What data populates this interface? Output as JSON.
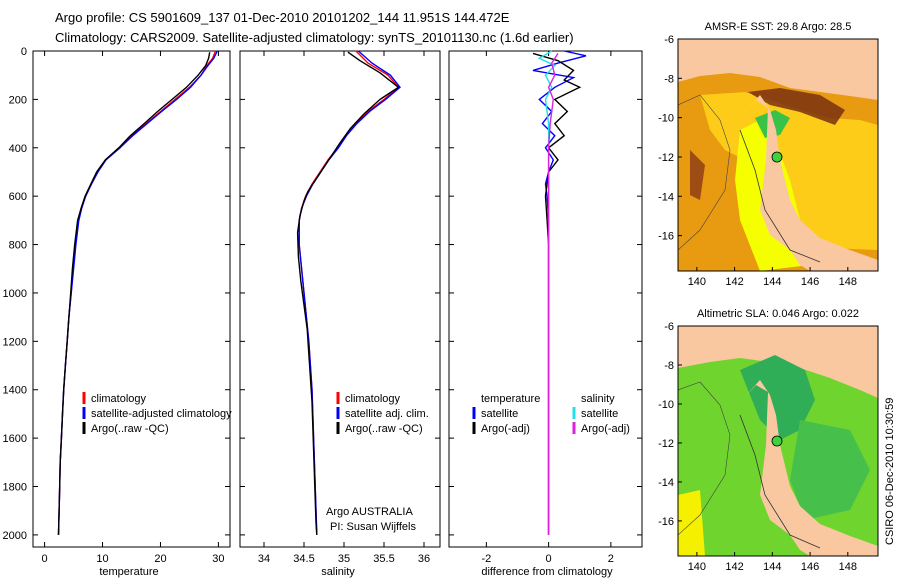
{
  "title": {
    "line1": "Argo profile: CS 5901609_137 01-Dec-2010 20101202_144 11.951S 144.472E",
    "line2": "Climatology: CARS2009. Satellite-adjusted climatology: synTS_20101130.nc (1.6d earlier)"
  },
  "colors": {
    "climatology": "#ff0000",
    "satellite": "#0000ff",
    "argo": "#000000",
    "satellite_diff": "#22e0e8",
    "argo_adj_diff": "#dd22dd",
    "land": "#f9c8a0"
  },
  "chart_data": [
    {
      "type": "line",
      "id": "temperature",
      "xlabel": "temperature",
      "xlim": [
        -2,
        32
      ],
      "ylim": [
        2050,
        0
      ],
      "xticks": [
        0,
        10,
        20,
        30
      ],
      "yticks": [
        0,
        200,
        400,
        600,
        800,
        1000,
        1200,
        1400,
        1600,
        1800,
        2000
      ],
      "legend": [
        "climatology",
        "satellite-adjusted climatology",
        "Argo(..raw -QC)"
      ],
      "series": [
        {
          "name": "climatology",
          "color": "#ff0000",
          "points": [
            [
              29.5,
              0
            ],
            [
              29,
              30
            ],
            [
              28,
              60
            ],
            [
              27,
              100
            ],
            [
              25,
              150
            ],
            [
              22.5,
              200
            ],
            [
              20,
              250
            ],
            [
              17.5,
              300
            ],
            [
              15,
              350
            ],
            [
              13,
              400
            ],
            [
              10.5,
              450
            ],
            [
              9,
              500
            ],
            [
              8,
              550
            ],
            [
              7,
              600
            ],
            [
              6.3,
              650
            ],
            [
              5.8,
              700
            ],
            [
              5.3,
              800
            ],
            [
              4.9,
              900
            ],
            [
              4.6,
              1000
            ],
            [
              4.2,
              1100
            ],
            [
              3.9,
              1200
            ],
            [
              3.6,
              1300
            ],
            [
              3.3,
              1400
            ],
            [
              3.1,
              1500
            ],
            [
              2.9,
              1600
            ],
            [
              2.7,
              1700
            ],
            [
              2.6,
              1800
            ],
            [
              2.5,
              1900
            ],
            [
              2.4,
              2000
            ]
          ]
        },
        {
          "name": "satellite-adjusted climatology",
          "color": "#0000ff",
          "points": [
            [
              29.8,
              0
            ],
            [
              29.2,
              30
            ],
            [
              28.2,
              60
            ],
            [
              27,
              100
            ],
            [
              25.2,
              150
            ],
            [
              22.8,
              200
            ],
            [
              20.2,
              250
            ],
            [
              17.7,
              300
            ],
            [
              15.2,
              350
            ],
            [
              13,
              400
            ],
            [
              10.6,
              450
            ],
            [
              9.2,
              500
            ],
            [
              8.1,
              550
            ],
            [
              7.1,
              600
            ],
            [
              6.4,
              650
            ],
            [
              5.9,
              700
            ],
            [
              5.4,
              800
            ],
            [
              5,
              900
            ],
            [
              4.6,
              1000
            ],
            [
              4.2,
              1100
            ],
            [
              3.9,
              1200
            ],
            [
              3.6,
              1300
            ],
            [
              3.3,
              1400
            ],
            [
              3.1,
              1500
            ],
            [
              2.9,
              1600
            ],
            [
              2.7,
              1700
            ],
            [
              2.6,
              1800
            ],
            [
              2.5,
              1900
            ],
            [
              2.4,
              2000
            ]
          ]
        },
        {
          "name": "Argo(..raw -QC)",
          "color": "#000000",
          "points": [
            [
              28.5,
              5
            ],
            [
              28.3,
              30
            ],
            [
              27.8,
              60
            ],
            [
              26.5,
              100
            ],
            [
              24.5,
              150
            ],
            [
              22,
              200
            ],
            [
              19.5,
              250
            ],
            [
              17.2,
              300
            ],
            [
              14.8,
              350
            ],
            [
              12.8,
              400
            ],
            [
              10.5,
              450
            ],
            [
              9,
              500
            ],
            [
              8,
              550
            ],
            [
              7,
              600
            ],
            [
              6.3,
              650
            ],
            [
              5.7,
              700
            ],
            [
              5.2,
              800
            ],
            [
              4.8,
              900
            ],
            [
              4.5,
              1000
            ],
            [
              4.2,
              1100
            ],
            [
              3.9,
              1200
            ],
            [
              3.6,
              1300
            ],
            [
              3.3,
              1400
            ],
            [
              3.1,
              1500
            ],
            [
              2.9,
              1600
            ],
            [
              2.7,
              1700
            ],
            [
              2.6,
              1800
            ],
            [
              2.5,
              1900
            ],
            [
              2.4,
              2000
            ]
          ]
        }
      ]
    },
    {
      "type": "line",
      "id": "salinity",
      "xlabel": "salinity",
      "xlim": [
        33.7,
        36.2
      ],
      "ylim": [
        2050,
        0
      ],
      "xticks": [
        34,
        34.5,
        35,
        35.5,
        36
      ],
      "legend": [
        "climatology",
        "satellite adj. clim.",
        "Argo(..raw -QC)"
      ],
      "annotation": [
        "Argo AUSTRALIA",
        "PI: Susan Wijffels"
      ],
      "series": [
        {
          "name": "climatology",
          "color": "#ff0000",
          "points": [
            [
              35.15,
              0
            ],
            [
              35.3,
              50
            ],
            [
              35.55,
              100
            ],
            [
              35.68,
              150
            ],
            [
              35.5,
              200
            ],
            [
              35.3,
              250
            ],
            [
              35.15,
              300
            ],
            [
              35.02,
              350
            ],
            [
              34.92,
              400
            ],
            [
              34.8,
              450
            ],
            [
              34.7,
              500
            ],
            [
              34.6,
              550
            ],
            [
              34.52,
              600
            ],
            [
              34.47,
              650
            ],
            [
              34.44,
              700
            ],
            [
              34.44,
              800
            ],
            [
              34.47,
              900
            ],
            [
              34.5,
              1000
            ],
            [
              34.53,
              1100
            ],
            [
              34.56,
              1200
            ],
            [
              34.58,
              1300
            ],
            [
              34.6,
              1400
            ],
            [
              34.61,
              1500
            ],
            [
              34.62,
              1600
            ],
            [
              34.63,
              1700
            ],
            [
              34.64,
              1800
            ],
            [
              34.65,
              1900
            ],
            [
              34.66,
              2000
            ]
          ]
        },
        {
          "name": "satellite adj. clim.",
          "color": "#0000ff",
          "points": [
            [
              35.18,
              0
            ],
            [
              35.35,
              50
            ],
            [
              35.58,
              100
            ],
            [
              35.7,
              150
            ],
            [
              35.52,
              200
            ],
            [
              35.32,
              250
            ],
            [
              35.16,
              300
            ],
            [
              35.03,
              350
            ],
            [
              34.93,
              400
            ],
            [
              34.81,
              450
            ],
            [
              34.71,
              500
            ],
            [
              34.61,
              550
            ],
            [
              34.53,
              600
            ],
            [
              34.47,
              650
            ],
            [
              34.44,
              700
            ],
            [
              34.44,
              800
            ],
            [
              34.47,
              900
            ],
            [
              34.5,
              1000
            ],
            [
              34.53,
              1100
            ],
            [
              34.56,
              1200
            ],
            [
              34.58,
              1300
            ],
            [
              34.6,
              1400
            ],
            [
              34.61,
              1500
            ],
            [
              34.62,
              1600
            ],
            [
              34.63,
              1700
            ],
            [
              34.64,
              1800
            ],
            [
              34.65,
              1900
            ],
            [
              34.66,
              2000
            ]
          ]
        },
        {
          "name": "Argo(..raw -QC)",
          "color": "#000000",
          "points": [
            [
              35.05,
              5
            ],
            [
              35.2,
              40
            ],
            [
              35.45,
              90
            ],
            [
              35.68,
              150
            ],
            [
              35.45,
              200
            ],
            [
              35.25,
              260
            ],
            [
              35.08,
              320
            ],
            [
              34.95,
              380
            ],
            [
              34.85,
              430
            ],
            [
              34.75,
              480
            ],
            [
              34.65,
              530
            ],
            [
              34.55,
              580
            ],
            [
              34.5,
              620
            ],
            [
              34.45,
              680
            ],
            [
              34.42,
              750
            ],
            [
              34.43,
              850
            ],
            [
              34.46,
              950
            ],
            [
              34.5,
              1050
            ],
            [
              34.54,
              1150
            ],
            [
              34.56,
              1250
            ],
            [
              34.58,
              1350
            ],
            [
              34.6,
              1450
            ],
            [
              34.61,
              1550
            ],
            [
              34.62,
              1650
            ],
            [
              34.63,
              1750
            ],
            [
              34.64,
              1850
            ],
            [
              34.65,
              1950
            ],
            [
              34.66,
              2000
            ]
          ]
        }
      ]
    },
    {
      "type": "line",
      "id": "difference",
      "xlabel": "difference from climatology",
      "xlim": [
        -3.2,
        3.0
      ],
      "ylim": [
        2050,
        0
      ],
      "xticks": [
        -2,
        0,
        2
      ],
      "legend_temperature_title": "temperature",
      "legend_salinity_title": "salinity",
      "legend": [
        "satellite",
        "Argo(-adj)",
        "satellite",
        "Argo(-adj)"
      ],
      "series": [
        {
          "name": "temperature satellite",
          "color": "#0000ff",
          "points": [
            [
              0.5,
              0
            ],
            [
              1.2,
              20
            ],
            [
              0.3,
              50
            ],
            [
              -0.5,
              80
            ],
            [
              0.8,
              110
            ],
            [
              0.2,
              150
            ],
            [
              -0.3,
              200
            ],
            [
              0.1,
              250
            ],
            [
              -0.2,
              300
            ],
            [
              0.2,
              350
            ],
            [
              -0.1,
              400
            ],
            [
              0.15,
              450
            ],
            [
              0,
              500
            ],
            [
              -0.1,
              550
            ],
            [
              -0.05,
              600
            ],
            [
              0,
              700
            ],
            [
              0,
              1000
            ],
            [
              0,
              2000
            ]
          ]
        },
        {
          "name": "temperature Argo(-adj)",
          "color": "#000000",
          "points": [
            [
              -0.5,
              10
            ],
            [
              0.3,
              40
            ],
            [
              0.8,
              80
            ],
            [
              0.5,
              120
            ],
            [
              1,
              150
            ],
            [
              0.2,
              200
            ],
            [
              0.6,
              250
            ],
            [
              0.2,
              300
            ],
            [
              0.5,
              350
            ],
            [
              0,
              400
            ],
            [
              0.3,
              450
            ],
            [
              0,
              500
            ],
            [
              -0.1,
              600
            ],
            [
              -0.05,
              700
            ],
            [
              0,
              800
            ],
            [
              0,
              2000
            ]
          ]
        },
        {
          "name": "salinity satellite",
          "color": "#22e0e8",
          "points": [
            [
              0.1,
              0
            ],
            [
              -0.3,
              30
            ],
            [
              0.2,
              60
            ],
            [
              -0.1,
              100
            ],
            [
              0.1,
              150
            ],
            [
              -0.1,
              200
            ],
            [
              0,
              300
            ],
            [
              0,
              2000
            ]
          ]
        },
        {
          "name": "salinity Argo(-adj)",
          "color": "#dd22dd",
          "points": [
            [
              0.3,
              10
            ],
            [
              0.1,
              50
            ],
            [
              0.2,
              100
            ],
            [
              0,
              150
            ],
            [
              0.15,
              200
            ],
            [
              0.05,
              300
            ],
            [
              0,
              400
            ],
            [
              0,
              2000
            ]
          ]
        }
      ]
    }
  ],
  "maps": [
    {
      "id": "sst",
      "title": "AMSR-E SST: 29.8 Argo: 28.5",
      "xticks": [
        "140",
        "142",
        "144",
        "146",
        "148"
      ],
      "yticks": [
        "-6",
        "-8",
        "-10",
        "-12",
        "-14",
        "-16"
      ],
      "marker_lon": 144.472,
      "marker_lat": -11.951
    },
    {
      "id": "sla",
      "title": "Altimetric SLA: 0.046 Argo: 0.022",
      "xticks": [
        "140",
        "142",
        "144",
        "146",
        "148"
      ],
      "yticks": [
        "-6",
        "-8",
        "-10",
        "-12",
        "-14",
        "-16"
      ],
      "marker_lon": 144.472,
      "marker_lat": -11.951
    }
  ],
  "footer_credit": "CSIRO 06-Dec-2010 10:30:59"
}
